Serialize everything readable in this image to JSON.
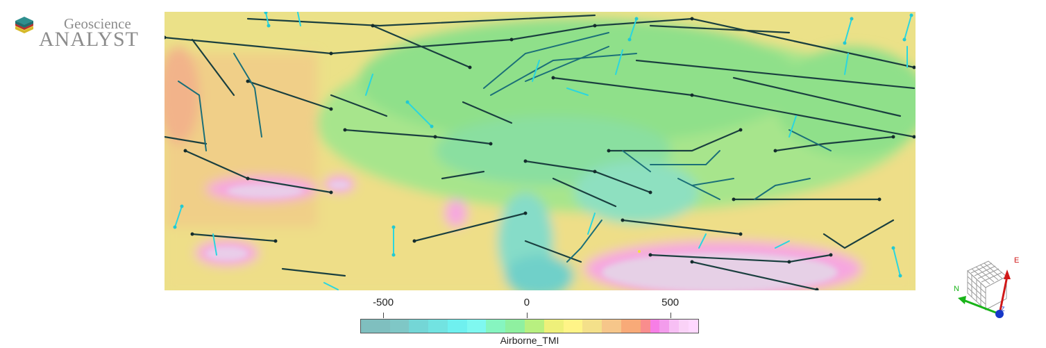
{
  "logo": {
    "line1": "Geoscience",
    "line2": "ANALYST"
  },
  "map": {
    "description_icon": "tmi-map-with-lineament-segments"
  },
  "colorbar": {
    "title": "Airborne_TMI",
    "ticks": [
      {
        "label": "-500",
        "value": -500
      },
      {
        "label": "0",
        "value": 0
      },
      {
        "label": "500",
        "value": 500
      }
    ],
    "range": [
      -580,
      600
    ],
    "colors": [
      "#7fbfbf",
      "#7fc7c6",
      "#74d6d6",
      "#72e3e1",
      "#6ff0ef",
      "#7ff8f0",
      "#86f5c0",
      "#8ff0a0",
      "#b8f080",
      "#eef07a",
      "#fff487",
      "#f4e08a",
      "#f6c68a",
      "#f8aa78",
      "#f98d8d",
      "#f77ee6",
      "#f39cec",
      "#f7bff4",
      "#fad2f7",
      "#ffd8ff"
    ],
    "swatch_counts": [
      3,
      2,
      2,
      2,
      2,
      2,
      2,
      2,
      2,
      2,
      2,
      2,
      2,
      2,
      1,
      1,
      1,
      1,
      1,
      1
    ]
  },
  "axes": {
    "north_label": "N",
    "east_label": "E",
    "z_label": "Z"
  }
}
